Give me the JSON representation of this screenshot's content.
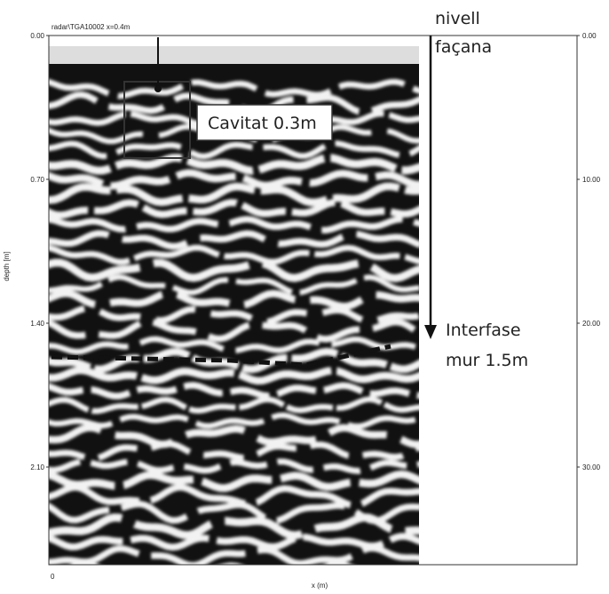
{
  "header": {
    "title": "radar\\TGA10002  x=0.4m"
  },
  "axes": {
    "y_label": "depth [m]",
    "x_label": "x (m)",
    "x_ticks": [
      "0"
    ],
    "y_ticks": [
      "0.00",
      "0.70",
      "1.40",
      "2.10"
    ],
    "y2_ticks": [
      "0.00",
      "10.00",
      "20.00",
      "30.00"
    ]
  },
  "annotations": {
    "level": [
      "nivell",
      "façana"
    ],
    "cavity": "Cavitat 0.3m",
    "interface": [
      "Interfase",
      "mur 1.5m"
    ]
  }
}
